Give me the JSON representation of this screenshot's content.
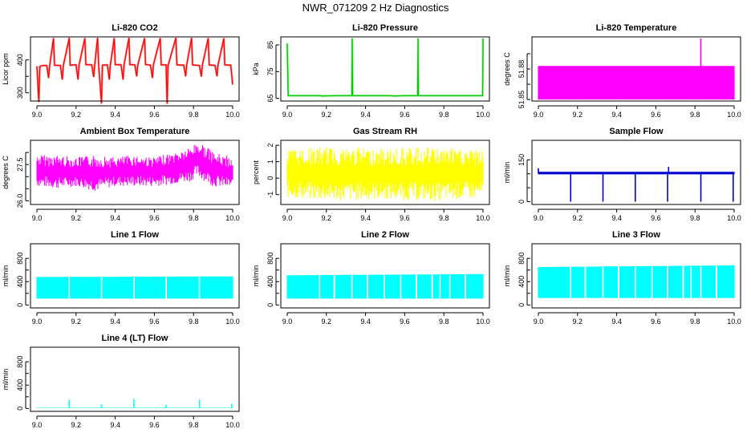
{
  "page_title": "NWR_071209  2 Hz Diagnostics",
  "chart_data": [
    {
      "type": "line",
      "title": "Li-820 CO2",
      "ylabel": "Licor ppm",
      "color": "#ff0000",
      "xlim": [
        9.0,
        10.0
      ],
      "ylim": [
        275,
        470
      ],
      "yticks": [
        300,
        350,
        400
      ],
      "ytick_labels": [
        "300",
        "",
        "400"
      ],
      "xticks": [
        9.0,
        9.2,
        9.4,
        9.6,
        9.8,
        10.0
      ],
      "xtick_labels": [
        "9.0",
        "9.2",
        "9.4",
        "9.6",
        "9.8",
        "10.0"
      ],
      "series": [
        {
          "values": [
            [
              9.0,
              381
            ],
            [
              9.01,
              272
            ],
            [
              9.015,
              380
            ],
            [
              9.03,
              383
            ],
            [
              9.05,
              383
            ],
            [
              9.06,
              345
            ],
            [
              9.065,
              382
            ],
            [
              9.085,
              466
            ],
            [
              9.09,
              384
            ],
            [
              9.12,
              383
            ],
            [
              9.13,
              340
            ],
            [
              9.135,
              382
            ],
            [
              9.165,
              467
            ],
            [
              9.17,
              384
            ],
            [
              9.19,
              385
            ],
            [
              9.2,
              385
            ],
            [
              9.21,
              340
            ],
            [
              9.215,
              384
            ],
            [
              9.245,
              466
            ],
            [
              9.25,
              386
            ],
            [
              9.28,
              385
            ],
            [
              9.29,
              348
            ],
            [
              9.295,
              384
            ],
            [
              9.31,
              467
            ],
            [
              9.315,
              386
            ],
            [
              9.33,
              268
            ],
            [
              9.335,
              384
            ],
            [
              9.36,
              385
            ],
            [
              9.37,
              340
            ],
            [
              9.375,
              384
            ],
            [
              9.395,
              466
            ],
            [
              9.4,
              386
            ],
            [
              9.43,
              385
            ],
            [
              9.44,
              340
            ],
            [
              9.445,
              385
            ],
            [
              9.47,
              467
            ],
            [
              9.475,
              386
            ],
            [
              9.5,
              385
            ],
            [
              9.51,
              350
            ],
            [
              9.515,
              384
            ],
            [
              9.55,
              466
            ],
            [
              9.555,
              386
            ],
            [
              9.58,
              384
            ],
            [
              9.59,
              345
            ],
            [
              9.595,
              385
            ],
            [
              9.63,
              466
            ],
            [
              9.635,
              385
            ],
            [
              9.66,
              385
            ],
            [
              9.665,
              267
            ],
            [
              9.67,
              383
            ],
            [
              9.71,
              467
            ],
            [
              9.715,
              385
            ],
            [
              9.75,
              384
            ],
            [
              9.76,
              350
            ],
            [
              9.765,
              385
            ],
            [
              9.79,
              467
            ],
            [
              9.795,
              385
            ],
            [
              9.83,
              383
            ],
            [
              9.84,
              349
            ],
            [
              9.845,
              384
            ],
            [
              9.875,
              466
            ],
            [
              9.88,
              385
            ],
            [
              9.91,
              383
            ],
            [
              9.92,
              350
            ],
            [
              9.925,
              384
            ],
            [
              9.955,
              466
            ],
            [
              9.96,
              385
            ],
            [
              9.99,
              384
            ],
            [
              10.0,
              325
            ]
          ]
        }
      ]
    },
    {
      "type": "line",
      "title": "Li-820 Pressure",
      "ylabel": "kPa",
      "color": "#00cc00",
      "xlim": [
        9.0,
        10.0
      ],
      "ylim": [
        64,
        88
      ],
      "yticks": [
        65,
        75,
        85
      ],
      "ytick_labels": [
        "65",
        "75",
        "85"
      ],
      "xticks": [
        9.0,
        9.2,
        9.4,
        9.6,
        9.8,
        10.0
      ],
      "xtick_labels": [
        "9.0",
        "9.2",
        "9.4",
        "9.6",
        "9.8",
        "10.0"
      ],
      "series": [
        {
          "values": [
            [
              9.0,
              85.5
            ],
            [
              9.005,
              66
            ],
            [
              9.1,
              66
            ],
            [
              9.17,
              66
            ],
            [
              9.175,
              65.9
            ],
            [
              9.25,
              66
            ],
            [
              9.33,
              66
            ],
            [
              9.332,
              87.5
            ],
            [
              9.334,
              66
            ],
            [
              9.45,
              66
            ],
            [
              9.52,
              66
            ],
            [
              9.55,
              65.9
            ],
            [
              9.6,
              66
            ],
            [
              9.666,
              66
            ],
            [
              9.668,
              87.5
            ],
            [
              9.67,
              66
            ],
            [
              9.75,
              66
            ],
            [
              9.85,
              66
            ],
            [
              9.95,
              66
            ],
            [
              9.998,
              66
            ],
            [
              10.0,
              87.5
            ]
          ]
        }
      ]
    },
    {
      "type": "line",
      "title": "Li-820 Temperature",
      "ylabel": "degrees C",
      "color": "#ff00ff",
      "xlim": [
        9.0,
        10.0
      ],
      "ylim": [
        51.849,
        51.891
      ],
      "yticks": [
        51.85,
        51.86,
        51.87,
        51.88
      ],
      "ytick_labels": [
        "51.85",
        "",
        "51.88",
        ""
      ],
      "xticks": [
        9.0,
        9.2,
        9.4,
        9.6,
        9.8,
        10.0
      ],
      "xtick_labels": [
        "9.0",
        "9.2",
        "9.4",
        "9.6",
        "9.8",
        "10.0"
      ],
      "series": [
        {
          "band": true,
          "values": [
            [
              9.0,
              51.85,
              51.872
            ],
            [
              10.0,
              51.85,
              51.872
            ]
          ],
          "spikes": [
            [
              9.83,
              51.89
            ]
          ]
        }
      ]
    },
    {
      "type": "line",
      "title": "Ambient Box Temperature",
      "ylabel": "degrees C",
      "color": "#ff00ff",
      "xlim": [
        9.0,
        10.0
      ],
      "ylim": [
        25.85,
        28.5
      ],
      "yticks": [
        26.0,
        26.5,
        27.0,
        27.5,
        28.0
      ],
      "ytick_labels": [
        "26.0",
        "",
        "",
        "27.5",
        ""
      ],
      "xticks": [
        9.0,
        9.2,
        9.4,
        9.6,
        9.8,
        10.0
      ],
      "xtick_labels": [
        "9.0",
        "9.2",
        "9.4",
        "9.6",
        "9.8",
        "10.0"
      ],
      "series": [
        {
          "band": true,
          "values": [
            [
              9.0,
              26.6,
              27.9
            ],
            [
              9.1,
              26.5,
              27.9
            ],
            [
              9.2,
              26.6,
              27.8
            ],
            [
              9.3,
              26.4,
              27.9
            ],
            [
              9.4,
              26.6,
              27.8
            ],
            [
              9.5,
              26.6,
              27.9
            ],
            [
              9.6,
              26.6,
              27.8
            ],
            [
              9.7,
              26.7,
              28.0
            ],
            [
              9.78,
              26.8,
              28.2
            ],
            [
              9.82,
              27.0,
              28.45
            ],
            [
              9.86,
              26.8,
              28.3
            ],
            [
              9.9,
              26.6,
              28.0
            ],
            [
              10.0,
              26.5,
              27.8
            ]
          ]
        }
      ]
    },
    {
      "type": "line",
      "title": "Gas Stream RH",
      "ylabel": "percent",
      "color": "#ffff00",
      "xlim": [
        9.0,
        10.0
      ],
      "ylim": [
        -1.6,
        2.3
      ],
      "yticks": [
        -1,
        0,
        1,
        2
      ],
      "ytick_labels": [
        "-1",
        "0",
        "1",
        "2"
      ],
      "xticks": [
        9.0,
        9.2,
        9.4,
        9.6,
        9.8,
        10.0
      ],
      "xtick_labels": [
        "9.0",
        "9.2",
        "9.4",
        "9.6",
        "9.8",
        "10.0"
      ],
      "series": [
        {
          "band": true,
          "values": [
            [
              9.0,
              -1.2,
              1.8
            ],
            [
              9.25,
              -1.4,
              1.9
            ],
            [
              9.5,
              -1.3,
              1.8
            ],
            [
              9.75,
              -1.4,
              1.9
            ],
            [
              10.0,
              -1.2,
              1.7
            ]
          ]
        }
      ]
    },
    {
      "type": "line",
      "title": "Sample Flow",
      "ylabel": "ml/min",
      "color": "#0000cc",
      "xlim": [
        9.0,
        10.0
      ],
      "ylim": [
        -10,
        220
      ],
      "yticks": [
        0,
        50,
        100,
        150
      ],
      "ytick_labels": [
        "0",
        "",
        "",
        "150"
      ],
      "xticks": [
        9.0,
        9.2,
        9.4,
        9.6,
        9.8,
        10.0
      ],
      "xtick_labels": [
        "9.0",
        "9.2",
        "9.4",
        "9.6",
        "9.8",
        "10.0"
      ],
      "series": [
        {
          "band": true,
          "values": [
            [
              9.0,
              98,
              107
            ],
            [
              10.0,
              98,
              107
            ]
          ],
          "spikes": [
            [
              9.0,
              120
            ],
            [
              9.165,
              0
            ],
            [
              9.33,
              0
            ],
            [
              9.495,
              0
            ],
            [
              9.66,
              0
            ],
            [
              9.665,
              125
            ],
            [
              9.83,
              0
            ],
            [
              9.995,
              0
            ]
          ]
        }
      ]
    },
    {
      "type": "line",
      "title": "Line 1 Flow",
      "ylabel": "ml/min",
      "color": "#00ffff",
      "xlim": [
        9.0,
        10.0
      ],
      "ylim": [
        -50,
        1050
      ],
      "yticks": [
        0,
        200,
        400,
        600,
        800
      ],
      "ytick_labels": [
        "0",
        "",
        "400",
        "",
        "800"
      ],
      "xticks": [
        9.0,
        9.2,
        9.4,
        9.6,
        9.8,
        10.0
      ],
      "xtick_labels": [
        "9.0",
        "9.2",
        "9.4",
        "9.6",
        "9.8",
        "10.0"
      ],
      "series": [
        {
          "band": true,
          "values": [
            [
              9.0,
              110,
              480
            ],
            [
              10.0,
              110,
              490
            ]
          ],
          "gaps": [
            9.165,
            9.33,
            9.495,
            9.66,
            9.83
          ]
        }
      ]
    },
    {
      "type": "line",
      "title": "Line 2 Flow",
      "ylabel": "ml/min",
      "color": "#00ffff",
      "xlim": [
        9.0,
        10.0
      ],
      "ylim": [
        -50,
        1050
      ],
      "yticks": [
        0,
        200,
        400,
        600,
        800
      ],
      "ytick_labels": [
        "0",
        "",
        "400",
        "",
        "800"
      ],
      "xticks": [
        9.0,
        9.2,
        9.4,
        9.6,
        9.8,
        10.0
      ],
      "xtick_labels": [
        "9.0",
        "9.2",
        "9.4",
        "9.6",
        "9.8",
        "10.0"
      ],
      "series": [
        {
          "band": true,
          "values": [
            [
              9.0,
              110,
              510
            ],
            [
              10.0,
              110,
              530
            ]
          ],
          "gaps": [
            9.165,
            9.24,
            9.33,
            9.41,
            9.495,
            9.58,
            9.66,
            9.74,
            9.78,
            9.83,
            9.91
          ]
        }
      ]
    },
    {
      "type": "line",
      "title": "Line 3 Flow",
      "ylabel": "ml/min",
      "color": "#00ffff",
      "xlim": [
        9.0,
        10.0
      ],
      "ylim": [
        -50,
        1050
      ],
      "yticks": [
        0,
        200,
        400,
        600,
        800
      ],
      "ytick_labels": [
        "0",
        "",
        "400",
        "",
        "800"
      ],
      "xticks": [
        9.0,
        9.2,
        9.4,
        9.6,
        9.8,
        10.0
      ],
      "xtick_labels": [
        "9.0",
        "9.2",
        "9.4",
        "9.6",
        "9.8",
        "10.0"
      ],
      "series": [
        {
          "band": true,
          "values": [
            [
              9.0,
              120,
              650
            ],
            [
              10.0,
              120,
              680
            ]
          ],
          "gaps": [
            9.165,
            9.24,
            9.33,
            9.41,
            9.495,
            9.58,
            9.66,
            9.74,
            9.78,
            9.83,
            9.91
          ]
        }
      ]
    },
    {
      "type": "line",
      "title": "Line 4 (LT) Flow",
      "ylabel": "ml/min",
      "color": "#00ffff",
      "xlim": [
        9.0,
        10.0
      ],
      "ylim": [
        -50,
        1050
      ],
      "yticks": [
        0,
        200,
        400,
        600,
        800
      ],
      "ytick_labels": [
        "0",
        "",
        "400",
        "",
        "800"
      ],
      "xticks": [
        9.0,
        9.2,
        9.4,
        9.6,
        9.8,
        10.0
      ],
      "xtick_labels": [
        "9.0",
        "9.2",
        "9.4",
        "9.6",
        "9.8",
        "10.0"
      ],
      "series": [
        {
          "band": true,
          "values": [
            [
              9.0,
              5,
              12
            ],
            [
              10.0,
              5,
              12
            ]
          ],
          "spikes": [
            [
              9.165,
              150
            ],
            [
              9.33,
              70
            ],
            [
              9.495,
              160
            ],
            [
              9.66,
              60
            ],
            [
              9.83,
              150
            ],
            [
              9.995,
              80
            ]
          ]
        }
      ]
    }
  ]
}
